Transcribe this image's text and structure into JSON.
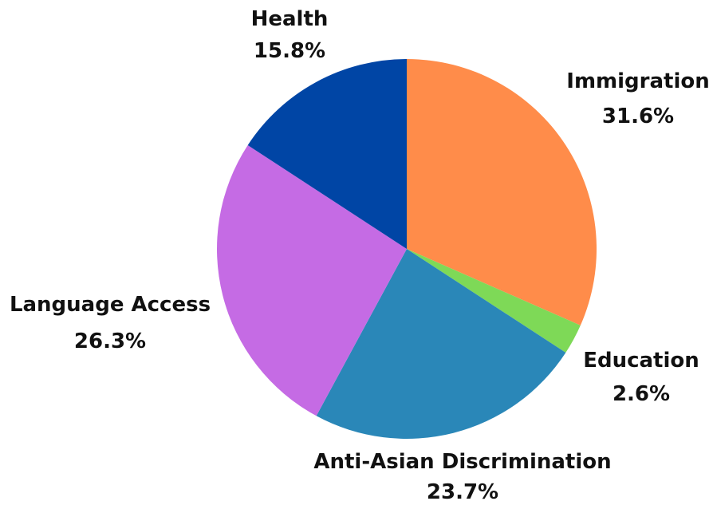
{
  "chart_data": {
    "type": "pie",
    "title": "",
    "start_angle_deg": 0,
    "direction": "clockwise",
    "slices": [
      {
        "label": "Immigration",
        "value": 31.6,
        "value_label": "31.6%",
        "color": "#FF8C4A"
      },
      {
        "label": "Education",
        "value": 2.6,
        "value_label": "2.6%",
        "color": "#7ED957"
      },
      {
        "label": "Anti-Asian Discrimination",
        "value": 23.7,
        "value_label": "23.7%",
        "color": "#2A87B8"
      },
      {
        "label": "Language Access",
        "value": 26.3,
        "value_label": "26.3%",
        "color": "#C56BE4"
      },
      {
        "label": "Health",
        "value": 15.8,
        "value_label": "15.8%",
        "color": "#0045A5"
      }
    ]
  }
}
